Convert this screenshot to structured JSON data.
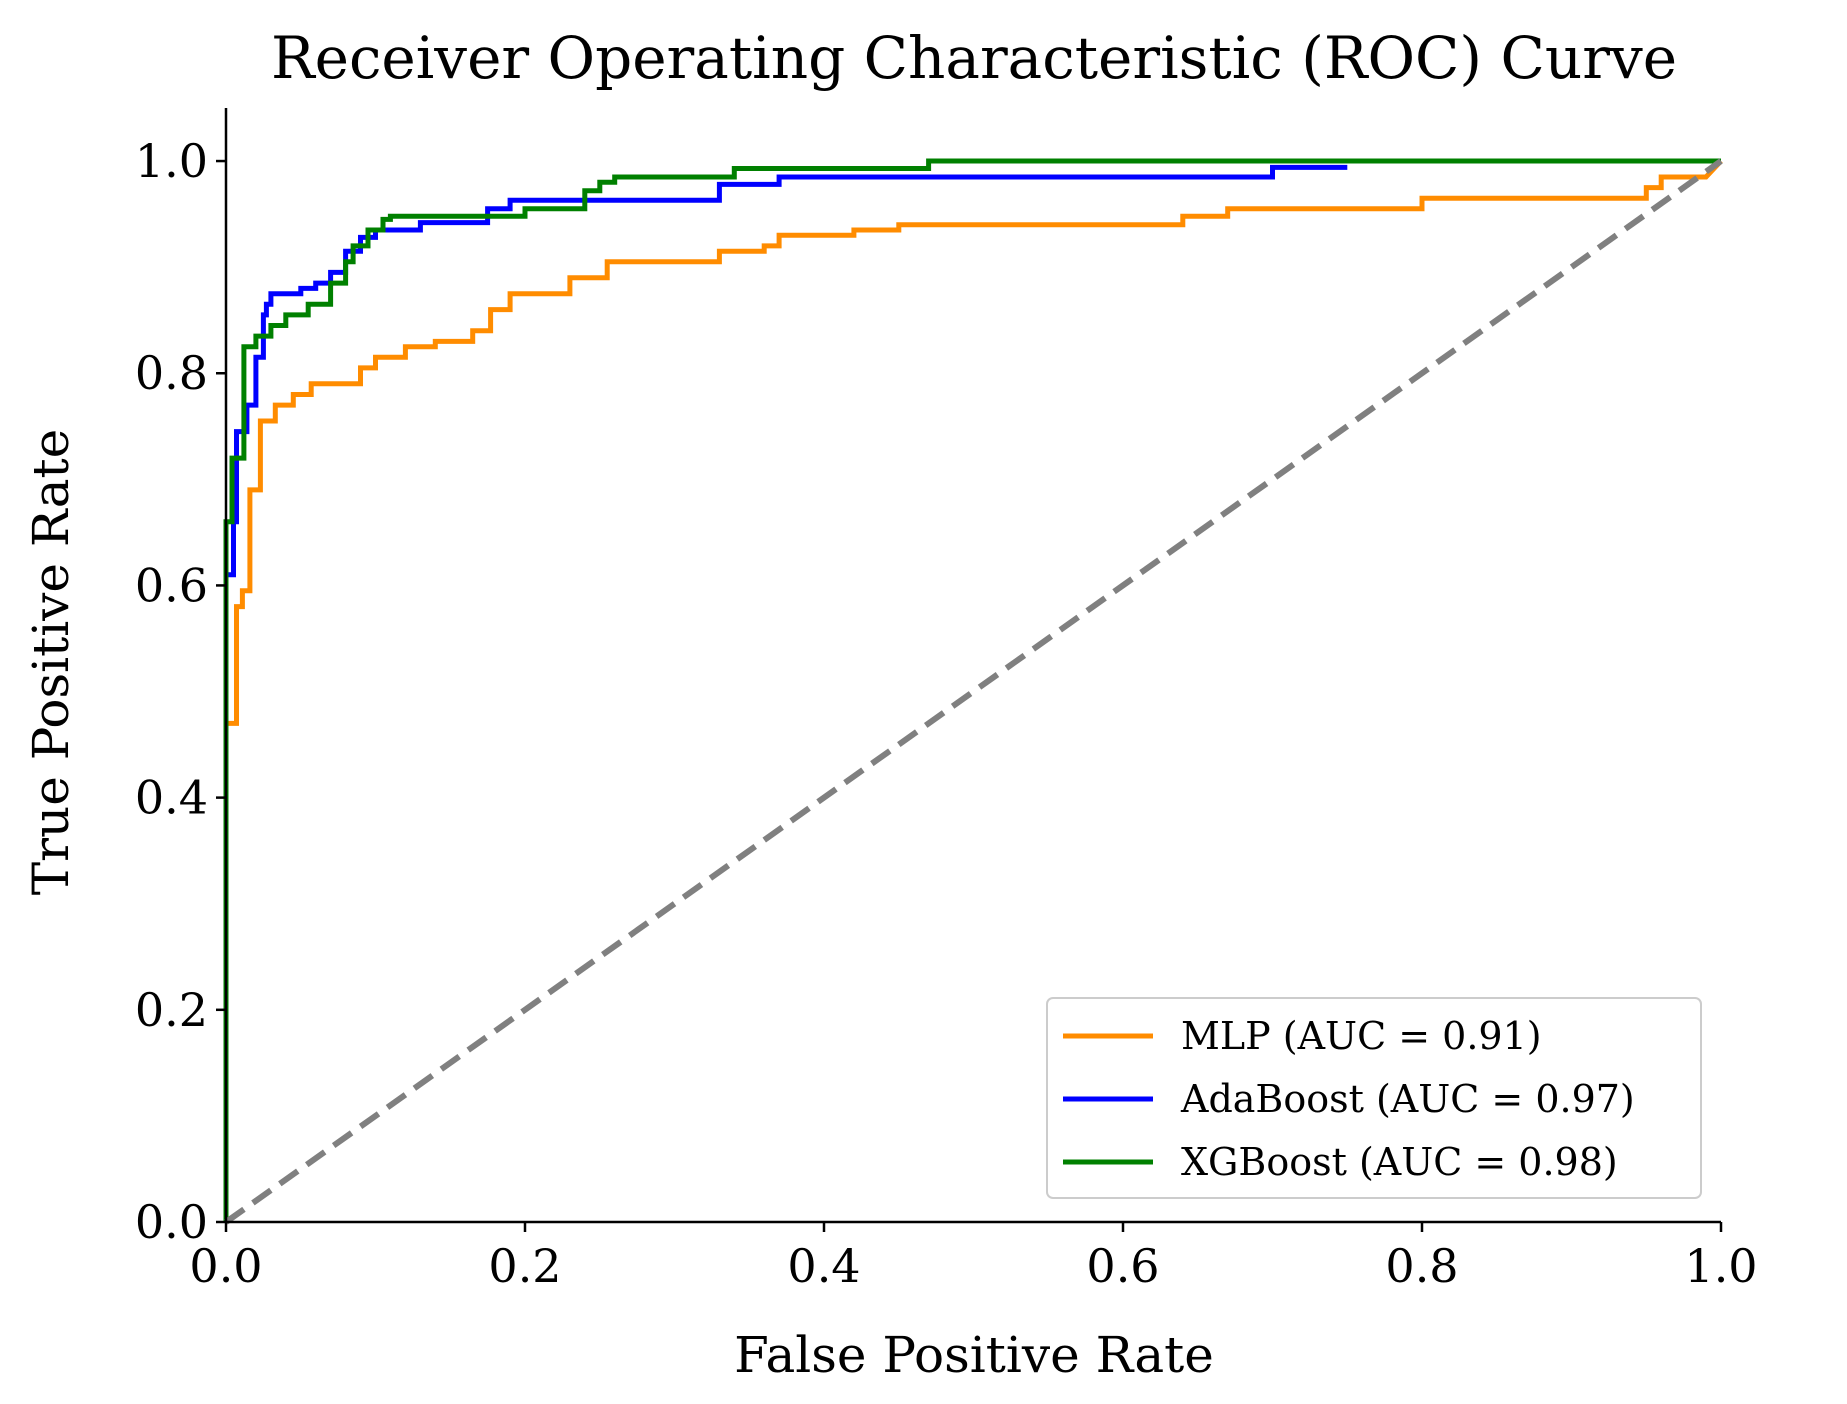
{
  "chart_data": {
    "type": "line",
    "title": "Receiver Operating Characteristic (ROC) Curve",
    "xlabel": "False Positive Rate",
    "ylabel": "True Positive Rate",
    "xlim": [
      0.0,
      1.0
    ],
    "ylim": [
      0.0,
      1.05
    ],
    "xticks": [
      0.0,
      0.2,
      0.4,
      0.6,
      0.8,
      1.0
    ],
    "yticks": [
      0.0,
      0.2,
      0.4,
      0.6,
      0.8,
      1.0
    ],
    "xtick_labels": [
      "0.0",
      "0.2",
      "0.4",
      "0.6",
      "0.8",
      "1.0"
    ],
    "ytick_labels": [
      "0.0",
      "0.2",
      "0.4",
      "0.6",
      "0.8",
      "1.0"
    ],
    "grid": false,
    "legend_position": "lower-right",
    "series": [
      {
        "name": "MLP (AUC = 0.91)",
        "color": "#ff8c00",
        "style": "step",
        "x": [
          0.0,
          0.0,
          0.007,
          0.007,
          0.011,
          0.011,
          0.016,
          0.016,
          0.023,
          0.023,
          0.033,
          0.033,
          0.045,
          0.045,
          0.057,
          0.057,
          0.09,
          0.09,
          0.1,
          0.1,
          0.12,
          0.12,
          0.14,
          0.14,
          0.165,
          0.165,
          0.177,
          0.177,
          0.19,
          0.19,
          0.22,
          0.22,
          0.23,
          0.23,
          0.255,
          0.255,
          0.27,
          0.27,
          0.33,
          0.33,
          0.36,
          0.36,
          0.37,
          0.37,
          0.42,
          0.42,
          0.45,
          0.45,
          0.64,
          0.64,
          0.67,
          0.67,
          0.8,
          0.8,
          0.95,
          0.95,
          0.96,
          0.96,
          0.99,
          1.0
        ],
        "y": [
          0.0,
          0.47,
          0.47,
          0.58,
          0.58,
          0.595,
          0.595,
          0.69,
          0.69,
          0.755,
          0.755,
          0.77,
          0.77,
          0.78,
          0.78,
          0.79,
          0.79,
          0.805,
          0.805,
          0.815,
          0.815,
          0.825,
          0.825,
          0.83,
          0.83,
          0.84,
          0.84,
          0.86,
          0.86,
          0.875,
          0.875,
          0.875,
          0.875,
          0.89,
          0.89,
          0.905,
          0.905,
          0.905,
          0.905,
          0.915,
          0.915,
          0.92,
          0.92,
          0.93,
          0.93,
          0.935,
          0.935,
          0.94,
          0.94,
          0.948,
          0.948,
          0.955,
          0.955,
          0.965,
          0.965,
          0.975,
          0.975,
          0.985,
          0.985,
          1.0
        ]
      },
      {
        "name": "AdaBoost (AUC = 0.97)",
        "color": "#0000ff",
        "style": "step",
        "x": [
          0.0,
          0.0,
          0.005,
          0.005,
          0.007,
          0.007,
          0.014,
          0.014,
          0.02,
          0.02,
          0.025,
          0.025,
          0.027,
          0.027,
          0.03,
          0.03,
          0.05,
          0.05,
          0.06,
          0.06,
          0.07,
          0.07,
          0.08,
          0.08,
          0.09,
          0.09,
          0.1,
          0.1,
          0.13,
          0.13,
          0.175,
          0.175,
          0.19,
          0.19,
          0.24,
          0.24,
          0.33,
          0.33,
          0.37,
          0.37,
          0.7,
          0.7,
          0.75
        ],
        "y": [
          0.0,
          0.61,
          0.61,
          0.66,
          0.66,
          0.745,
          0.745,
          0.77,
          0.77,
          0.815,
          0.815,
          0.855,
          0.855,
          0.865,
          0.865,
          0.875,
          0.875,
          0.88,
          0.88,
          0.885,
          0.885,
          0.895,
          0.895,
          0.915,
          0.915,
          0.928,
          0.928,
          0.935,
          0.935,
          0.942,
          0.942,
          0.955,
          0.955,
          0.963,
          0.963,
          0.963,
          0.963,
          0.978,
          0.978,
          0.985,
          0.985,
          0.994,
          0.994
        ]
      },
      {
        "name": "XGBoost (AUC = 0.98)",
        "color": "#008000",
        "style": "step",
        "x": [
          0.0,
          0.0,
          0.004,
          0.004,
          0.012,
          0.012,
          0.02,
          0.02,
          0.03,
          0.03,
          0.04,
          0.04,
          0.055,
          0.055,
          0.07,
          0.07,
          0.08,
          0.08,
          0.085,
          0.085,
          0.095,
          0.095,
          0.105,
          0.105,
          0.11,
          0.11,
          0.2,
          0.2,
          0.24,
          0.24,
          0.25,
          0.25,
          0.26,
          0.26,
          0.34,
          0.34,
          0.47,
          0.47,
          1.0
        ],
        "y": [
          0.0,
          0.66,
          0.66,
          0.72,
          0.72,
          0.825,
          0.825,
          0.835,
          0.835,
          0.845,
          0.845,
          0.855,
          0.855,
          0.865,
          0.865,
          0.885,
          0.885,
          0.905,
          0.905,
          0.92,
          0.92,
          0.935,
          0.935,
          0.945,
          0.945,
          0.948,
          0.948,
          0.955,
          0.955,
          0.972,
          0.972,
          0.98,
          0.98,
          0.985,
          0.985,
          0.993,
          0.993,
          1.0,
          1.0
        ]
      },
      {
        "name": "",
        "color": "#808080",
        "style": "dashed",
        "x": [
          0.0,
          1.0
        ],
        "y": [
          0.0,
          1.0
        ]
      }
    ]
  }
}
